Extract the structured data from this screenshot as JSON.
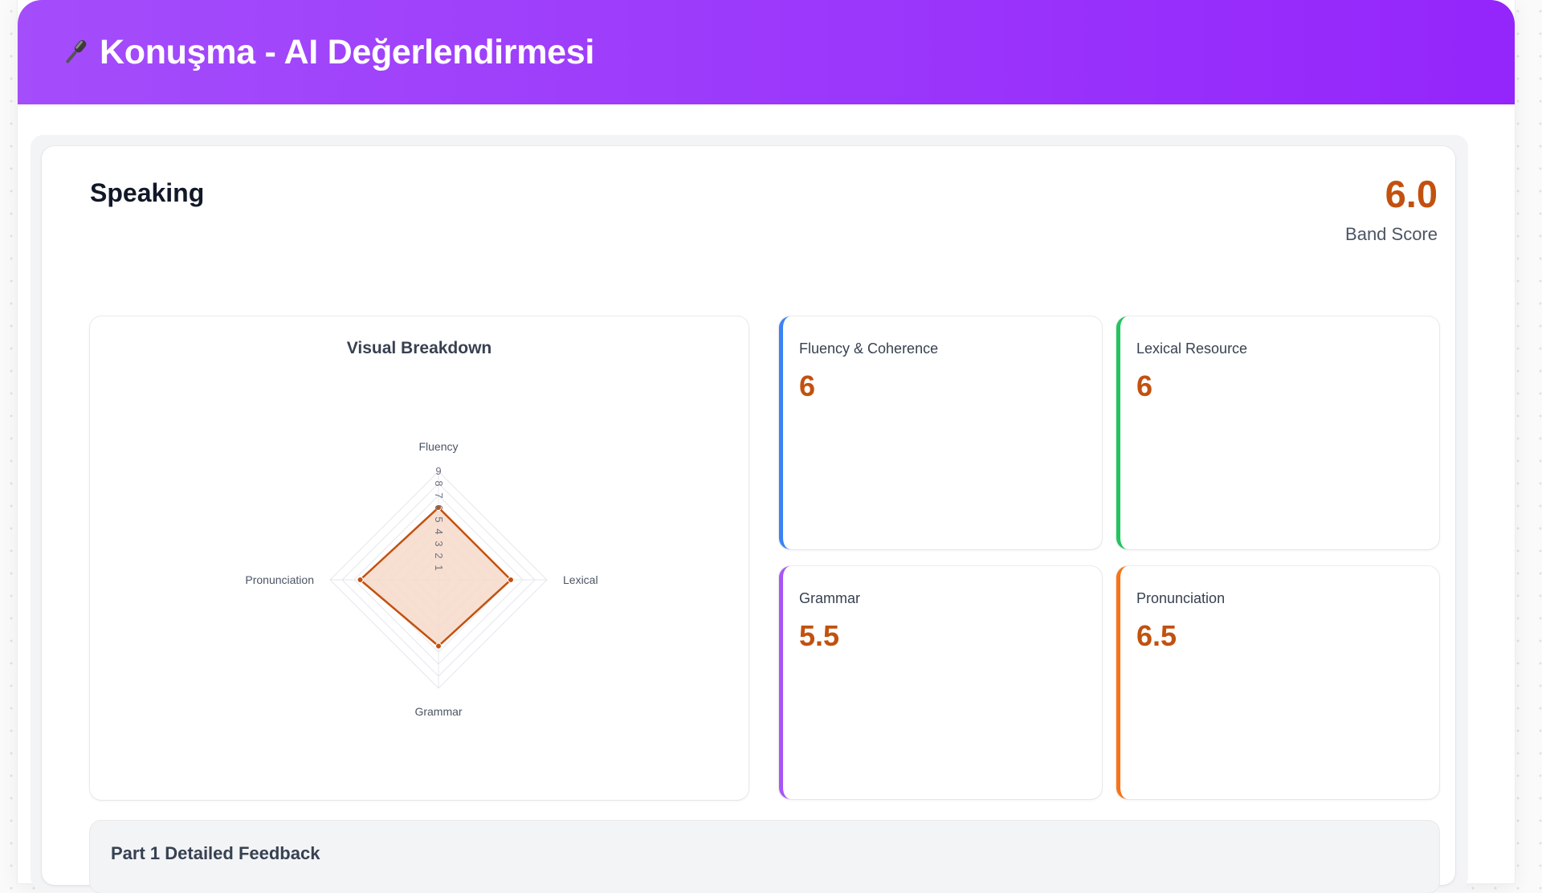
{
  "header": {
    "title": "Konuşma - AI Değerlendirmesi",
    "icon": "microphone-icon",
    "gradient": [
      "#a44dfb",
      "#9425fb"
    ]
  },
  "section": {
    "title": "Speaking",
    "band_score": "6.0",
    "band_label": "Band Score"
  },
  "chart": {
    "title": "Visual Breakdown"
  },
  "chart_data": {
    "type": "radar",
    "title": "Visual Breakdown",
    "axes": [
      "Fluency",
      "Lexical",
      "Grammar",
      "Pronunciation"
    ],
    "values": [
      6,
      6,
      5.5,
      6.5
    ],
    "r_ticks": [
      "1",
      "2",
      "3",
      "4",
      "5",
      "6",
      "7",
      "8",
      "9"
    ],
    "range": [
      0,
      9
    ],
    "color": "#c2510f",
    "fill": "#f6d9c9"
  },
  "criteria": [
    {
      "label": "Fluency & Coherence",
      "score": "6",
      "color": "#3b82f6"
    },
    {
      "label": "Lexical Resource",
      "score": "6",
      "color": "#22c55e"
    },
    {
      "label": "Grammar",
      "score": "5.5",
      "color": "#a855f7"
    },
    {
      "label": "Pronunciation",
      "score": "6.5",
      "color": "#f97316"
    }
  ],
  "feedback": {
    "title": "Part 1 Detailed Feedback"
  }
}
